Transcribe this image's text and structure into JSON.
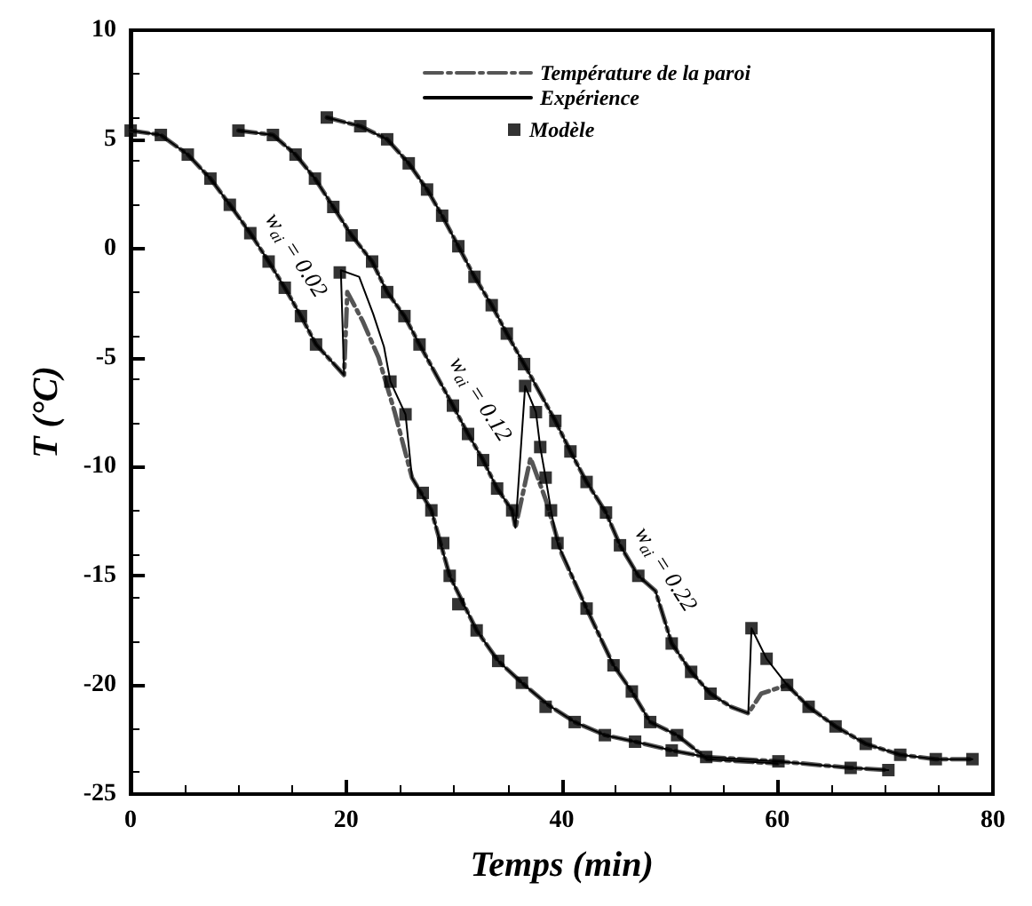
{
  "chart_data": {
    "type": "line",
    "xlabel": "Temps (min)",
    "ylabel": "T (°C)",
    "xlim": [
      0,
      80
    ],
    "ylim": [
      -25,
      10
    ],
    "xticks": [
      0,
      20,
      40,
      60,
      80
    ],
    "yticks": [
      -25,
      -20,
      -15,
      -10,
      -5,
      0,
      5,
      10
    ],
    "legend": "top right",
    "grid": false,
    "annotations": [
      {
        "text": "w$_{ai}$ = 0.02",
        "x": 12.8,
        "y": -0.6
      },
      {
        "text": "w$_{ai}$ = 0.12",
        "x": 29.9,
        "y": -7.2
      },
      {
        "text": "w$_{ai}$ = 0.22",
        "x": 47.1,
        "y": -15.0
      }
    ],
    "series": [
      {
        "name": "Température de la paroi",
        "color": "#555555",
        "line_style": "dashed",
        "x": [
          0,
          2.8,
          5.3,
          7.4,
          9.2,
          11.1,
          12.8,
          14.3,
          15.8,
          17.2,
          19.8,
          20.1,
          21.5,
          23,
          24.5,
          26.1,
          27.9,
          29.6,
          32.1,
          34.1,
          36.3,
          38.7,
          41.2,
          44,
          46.8,
          50.2,
          53.4,
          60.1,
          66.8,
          70.3
        ],
        "values": [
          5.4,
          5.2,
          4.3,
          3.2,
          2.0,
          0.7,
          -0.6,
          -1.8,
          -3.1,
          -4.4,
          -5.8,
          -2.0,
          -3.3,
          -5.0,
          -7.5,
          -10.5,
          -12.0,
          -15.0,
          -17.5,
          -18.9,
          -19.9,
          -20.9,
          -21.7,
          -22.3,
          -22.6,
          -23.0,
          -23.3,
          -23.5,
          -23.8,
          -23.9
        ]
      },
      {
        "color": "#555555",
        "line_style": "dashed",
        "x": [
          10,
          13.2,
          15.3,
          17.1,
          18.8,
          20.5,
          22.4,
          23.8,
          25.4,
          26.8,
          29.9,
          31.3,
          32.7,
          34,
          35.4,
          35.7,
          37.1,
          38.5,
          40,
          42.3,
          44.8,
          46.5,
          48.2,
          50.7,
          53.5,
          60
        ],
        "values": [
          5.4,
          5.2,
          4.3,
          3.2,
          1.9,
          0.6,
          -0.6,
          -2.0,
          -3.1,
          -4.4,
          -7.2,
          -8.5,
          -9.7,
          -11.0,
          -12.0,
          -12.8,
          -9.6,
          -11.5,
          -14.0,
          -16.5,
          -19.1,
          -20.3,
          -21.7,
          -22.3,
          -23.4,
          -23.6
        ]
      },
      {
        "color": "#555555",
        "line_style": "dashed",
        "x": [
          18.2,
          21.3,
          23.8,
          25.8,
          27.5,
          28.9,
          30.4,
          31.9,
          33.5,
          34.9,
          36.5,
          39.4,
          40.8,
          42.3,
          44.1,
          45.4,
          47.1,
          48.7,
          50.2,
          52,
          53.8,
          55.7,
          57.3,
          58.5,
          60.9,
          62.9,
          65.4,
          68.2,
          71.4,
          74.7,
          78.1
        ],
        "values": [
          6.0,
          5.6,
          5.0,
          3.9,
          2.7,
          1.5,
          0.1,
          -1.3,
          -2.6,
          -3.9,
          -5.3,
          -7.9,
          -9.3,
          -10.7,
          -12.1,
          -13.6,
          -15.0,
          -15.7,
          -18.1,
          -19.4,
          -20.4,
          -21.0,
          -21.3,
          -20.4,
          -20.0,
          -21.0,
          -21.9,
          -22.7,
          -23.2,
          -23.4,
          -23.4
        ]
      },
      {
        "name": "Expérience",
        "color": "#000000",
        "line_style": "solid",
        "x": [
          0,
          2.8,
          5.3,
          7.4,
          9.2,
          11.1,
          12.8,
          14.3,
          15.8,
          17.2,
          19.8,
          19.5,
          21.2,
          22.5,
          23.5,
          24.1,
          25.5,
          26.1,
          27.9,
          29.6,
          32.1,
          34.1,
          36.3,
          38.7,
          41.2,
          44,
          46.8,
          50.2,
          53.4,
          60.1,
          66.8,
          70.3
        ],
        "values": [
          5.4,
          5.2,
          4.3,
          3.2,
          2.0,
          0.7,
          -0.6,
          -1.8,
          -3.1,
          -4.4,
          -5.8,
          -1.0,
          -1.3,
          -3.0,
          -4.5,
          -6.1,
          -7.6,
          -10.5,
          -12.0,
          -15.0,
          -17.5,
          -18.9,
          -19.9,
          -20.9,
          -21.7,
          -22.3,
          -22.6,
          -23.0,
          -23.3,
          -23.5,
          -23.8,
          -23.9
        ]
      },
      {
        "color": "#000000",
        "line_style": "solid",
        "x": [
          10,
          13.2,
          15.3,
          17.1,
          18.8,
          20.5,
          22.4,
          23.8,
          25.4,
          26.8,
          29.9,
          31.3,
          32.7,
          34,
          35.4,
          35.7,
          36.6,
          37.6,
          38,
          38.5,
          39,
          39.6,
          42.3,
          44.8,
          46.5,
          48.2,
          50.7,
          53.5,
          60
        ],
        "values": [
          5.4,
          5.2,
          4.3,
          3.2,
          1.9,
          0.6,
          -0.6,
          -2.0,
          -3.1,
          -4.4,
          -7.2,
          -8.5,
          -9.7,
          -11.0,
          -12.0,
          -12.8,
          -6.3,
          -7.5,
          -9.1,
          -10.5,
          -12.0,
          -13.5,
          -16.5,
          -19.1,
          -20.3,
          -21.7,
          -22.3,
          -23.4,
          -23.6
        ]
      },
      {
        "color": "#000000",
        "line_style": "solid",
        "x": [
          18.2,
          21.3,
          23.8,
          25.8,
          27.5,
          28.9,
          30.4,
          31.9,
          33.5,
          34.9,
          36.5,
          39.4,
          40.8,
          42.3,
          44.1,
          45.4,
          47.1,
          48.7,
          50.2,
          52,
          53.8,
          55.7,
          57.3,
          57.6,
          59,
          60.9,
          62.9,
          65.4,
          68.2,
          71.4,
          74.7,
          78.1
        ],
        "values": [
          6.0,
          5.6,
          5.0,
          3.9,
          2.7,
          1.5,
          0.1,
          -1.3,
          -2.6,
          -3.9,
          -5.3,
          -7.9,
          -9.3,
          -10.7,
          -12.1,
          -13.6,
          -15.0,
          -15.7,
          -18.1,
          -19.4,
          -20.4,
          -21.0,
          -21.3,
          -17.4,
          -18.8,
          -20.0,
          -21.0,
          -21.9,
          -22.7,
          -23.2,
          -23.4,
          -23.4
        ]
      },
      {
        "type": "scatter",
        "name": "Modèle",
        "color": "#000000",
        "marker": "square",
        "x": [
          0,
          2.8,
          5.3,
          7.4,
          9.2,
          11.1,
          12.8,
          14.3,
          15.8,
          17.2,
          19.4,
          24.1,
          25.5,
          27.1,
          27.9,
          29,
          29.6,
          30.4,
          32.1,
          34.1,
          36.3,
          38.5,
          41.2,
          44,
          46.8,
          50.2,
          53.4,
          60.1,
          66.8,
          70.3
        ],
        "values": [
          5.4,
          5.2,
          4.3,
          3.2,
          2.0,
          0.7,
          -0.6,
          -1.8,
          -3.1,
          -4.4,
          -1.1,
          -6.1,
          -7.6,
          -11.2,
          -12.0,
          -13.5,
          -15.0,
          -16.3,
          -17.5,
          -18.9,
          -19.9,
          -21.0,
          -21.7,
          -22.3,
          -22.6,
          -23.0,
          -23.3,
          -23.5,
          -23.8,
          -23.9
        ]
      },
      {
        "type": "scatter",
        "color": "#000000",
        "marker": "square",
        "x": [
          10,
          13.2,
          15.3,
          17.1,
          18.8,
          20.5,
          22.4,
          23.8,
          25.4,
          26.8,
          29.9,
          31.3,
          32.7,
          34,
          35.4,
          36.6,
          37.6,
          38,
          38.5,
          39,
          39.6,
          42.3,
          44.8,
          46.5,
          48.2,
          50.7
        ],
        "values": [
          5.4,
          5.2,
          4.3,
          3.2,
          1.9,
          0.6,
          -0.6,
          -2.0,
          -3.1,
          -4.4,
          -7.2,
          -8.5,
          -9.7,
          -11.0,
          -12.0,
          -6.3,
          -7.5,
          -9.1,
          -10.5,
          -12.0,
          -13.5,
          -16.5,
          -19.1,
          -20.3,
          -21.7,
          -22.3
        ]
      },
      {
        "type": "scatter",
        "color": "#000000",
        "marker": "square",
        "x": [
          18.2,
          21.3,
          23.8,
          25.8,
          27.5,
          28.9,
          30.4,
          31.9,
          33.5,
          34.9,
          36.5,
          39.4,
          40.8,
          42.3,
          44.1,
          45.4,
          47.1,
          50.2,
          52,
          53.8,
          57.6,
          59,
          60.9,
          62.9,
          65.4,
          68.2,
          71.4,
          74.7,
          78.1
        ],
        "values": [
          6.0,
          5.6,
          5.0,
          3.9,
          2.7,
          1.5,
          0.1,
          -1.3,
          -2.6,
          -3.9,
          -5.3,
          -7.9,
          -9.3,
          -10.7,
          -12.1,
          -13.6,
          -15.0,
          -18.1,
          -19.4,
          -20.4,
          -17.4,
          -18.8,
          -20.0,
          -21.0,
          -21.9,
          -22.7,
          -23.2,
          -23.4,
          -23.4
        ]
      }
    ]
  }
}
